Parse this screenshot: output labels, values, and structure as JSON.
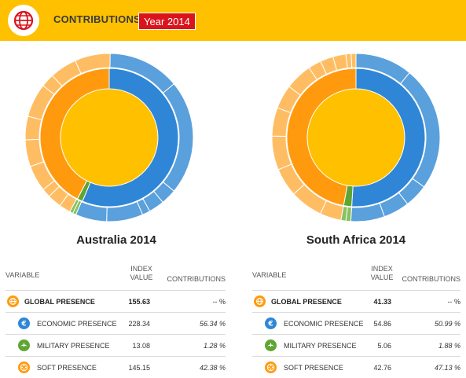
{
  "header": {
    "title": "CONTRIBUTIONS",
    "year_badge": "Year 2014",
    "logo_icon": "globe-icon"
  },
  "colors": {
    "header_bg": "#ffc000",
    "badge_bg": "#d9141c",
    "global": "#ffc000",
    "economic": "#2f86d6",
    "military": "#5fa532",
    "soft": "#ff9a0e"
  },
  "table_headers": {
    "variable": "VARIABLE",
    "index_value_line1": "INDEX",
    "index_value_line2": "VALUE",
    "contributions": "CONTRIBUTIONS"
  },
  "chart_data": [
    {
      "type": "pie",
      "title": "Australia 2014",
      "index_value": 155.63,
      "categories": [
        "Economic presence",
        "Military presence",
        "Soft presence"
      ],
      "values": [
        56.34,
        1.28,
        42.38
      ],
      "outer_ring": {
        "economic": [
          14,
          22,
          3,
          3,
          1.5,
          7,
          6
        ],
        "military": [
          0.64,
          0.64
        ],
        "soft": [
          2.2,
          2.7,
          1.7,
          5,
          5.2,
          4.5,
          6.5,
          2.6,
          5.2,
          6.8
        ]
      },
      "rows": [
        {
          "name": "GLOBAL PRESENCE",
          "index": "155.63",
          "contribution": "-- %",
          "icon": "globe-icon"
        },
        {
          "name": "ECONOMIC PRESENCE",
          "index": "228.34",
          "contribution": "56.34 %",
          "icon": "euro-icon"
        },
        {
          "name": "MILITARY PRESENCE",
          "index": "13.08",
          "contribution": "1.28 %",
          "icon": "military-icon"
        },
        {
          "name": "SOFT PRESENCE",
          "index": "145.15",
          "contribution": "42.38 %",
          "icon": "film-reel-icon"
        }
      ]
    },
    {
      "type": "pie",
      "title": "South Africa 2014",
      "index_value": 41.33,
      "categories": [
        "Economic presence",
        "Military presence",
        "Soft presence"
      ],
      "values": [
        50.99,
        1.88,
        47.13
      ],
      "outer_ring": {
        "economic": [
          11,
          24,
          4.5,
          5,
          6.49
        ],
        "military": [
          0.94,
          0.94
        ],
        "soft": [
          4.1,
          6.3,
          5.5,
          6.5,
          5.5,
          4.6,
          5.2,
          2.5,
          2.5,
          2.5,
          1.0,
          0.93
        ]
      },
      "rows": [
        {
          "name": "GLOBAL PRESENCE",
          "index": "41.33",
          "contribution": "-- %",
          "icon": "globe-icon"
        },
        {
          "name": "ECONOMIC PRESENCE",
          "index": "54.86",
          "contribution": "50.99 %",
          "icon": "euro-icon"
        },
        {
          "name": "MILITARY PRESENCE",
          "index": "5.06",
          "contribution": "1.88 %",
          "icon": "military-icon"
        },
        {
          "name": "SOFT PRESENCE",
          "index": "42.76",
          "contribution": "47.13 %",
          "icon": "film-reel-icon"
        }
      ]
    }
  ]
}
